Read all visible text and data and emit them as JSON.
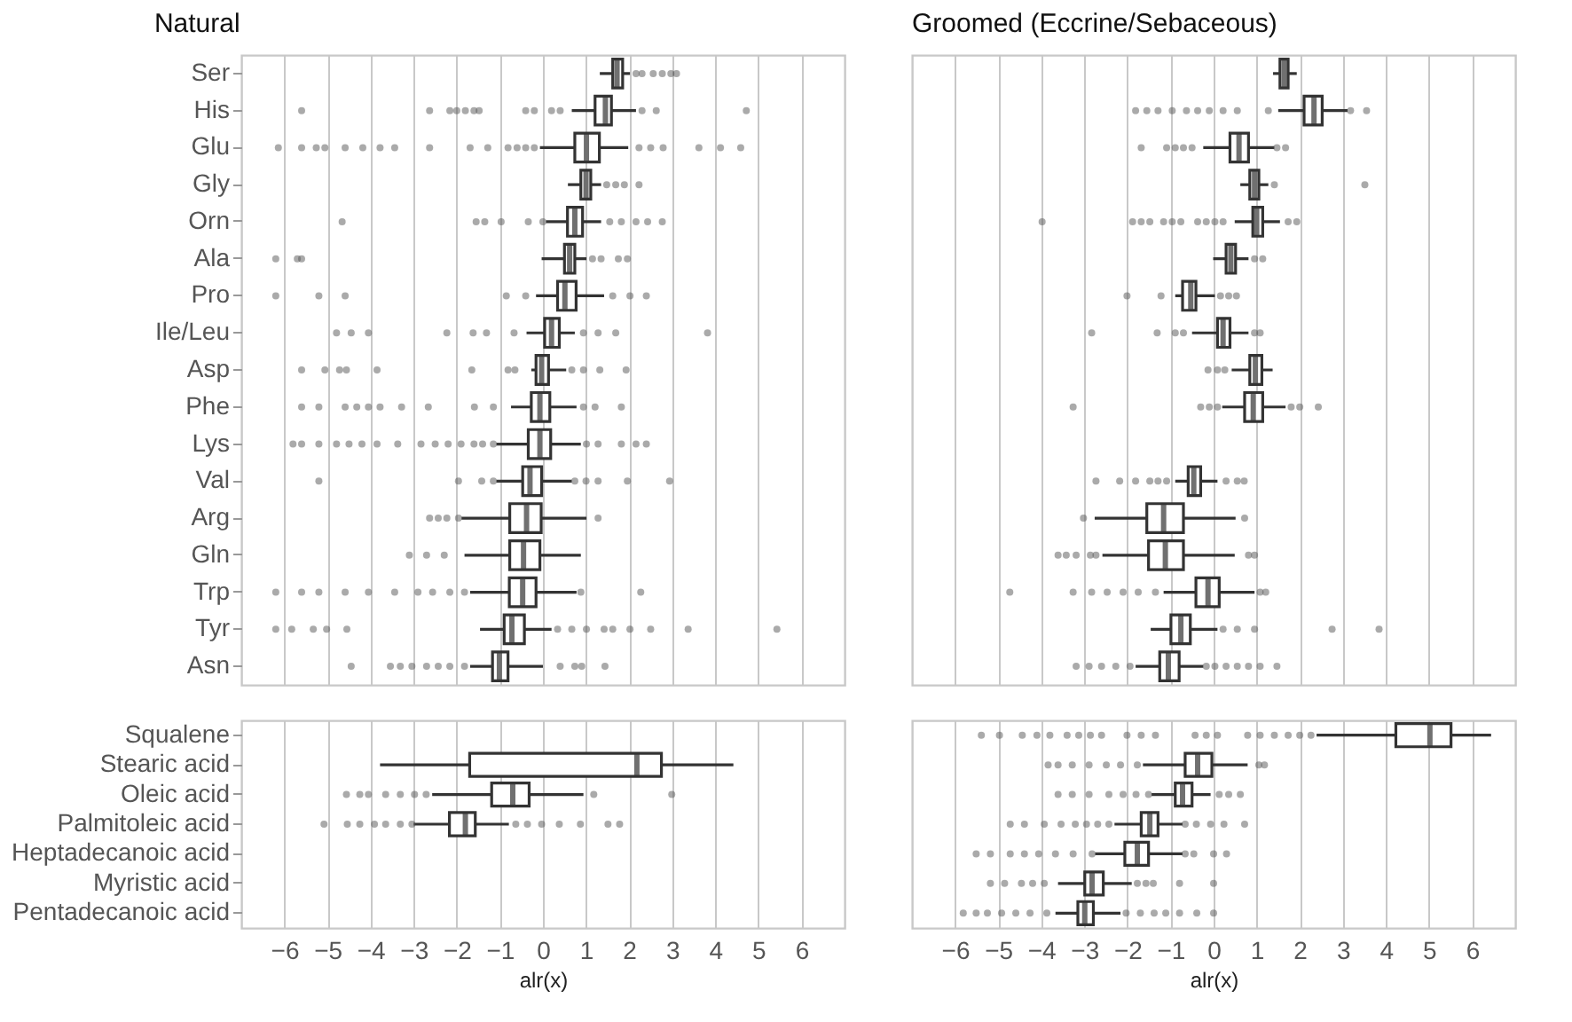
{
  "chart_data": [
    {
      "type": "box",
      "title": "Natural",
      "orientation": "horizontal",
      "grid": "x",
      "tick_labels": "y",
      "xlim": [
        -7,
        7
      ],
      "xticks": [
        -6,
        -5,
        -4,
        -3,
        -2,
        -1,
        0,
        1,
        2,
        3,
        4,
        5,
        6
      ],
      "categories": [
        "Ser",
        "His",
        "Glu",
        "Gly",
        "Orn",
        "Ala",
        "Pro",
        "Ile/Leu",
        "Asp",
        "Phe",
        "Lys",
        "Val",
        "Arg",
        "Gln",
        "Trp",
        "Tyr",
        "Asn"
      ],
      "series": [
        {
          "color": "#333333",
          "boxes": [
            {
              "low": 1.32,
              "q1": 1.62,
              "median": 1.72,
              "q3": 1.85,
              "high": 2.02,
              "outliers": [
                2.16,
                2.3,
                2.56,
                2.77,
                2.97,
                3.1
              ]
            },
            {
              "low": 0.67,
              "q1": 1.21,
              "median": 1.45,
              "q3": 1.59,
              "high": 2.16,
              "outliers": [
                -5.6,
                -2.63,
                -2.16,
                -2.0,
                -1.8,
                -1.6,
                -1.48,
                -0.4,
                -0.2,
                0.2,
                0.4,
                2.3,
                2.63,
                4.72
              ]
            },
            {
              "low": -0.07,
              "q1": 0.74,
              "median": 1.01,
              "q3": 1.31,
              "high": 1.98,
              "outliers": [
                -6.14,
                -5.6,
                -5.26,
                -5.06,
                -4.59,
                -4.18,
                -3.78,
                -3.44,
                -2.63,
                -1.69,
                -1.28,
                -0.81,
                -0.6,
                -0.4,
                -0.2,
                2.23,
                2.5,
                2.79,
                3.62,
                4.12,
                4.59
              ]
            },
            {
              "low": 0.58,
              "q1": 0.88,
              "median": 1.0,
              "q3": 1.11,
              "high": 1.35,
              "outliers": [
                1.48,
                1.69,
                1.89,
                2.23
              ]
            },
            {
              "low": 0.07,
              "q1": 0.57,
              "median": 0.74,
              "q3": 0.92,
              "high": 1.35,
              "outliers": [
                -4.66,
                -1.55,
                -1.35,
                -0.97,
                -0.34,
                0.0,
                1.55,
                1.82,
                2.16,
                2.43,
                2.77
              ]
            },
            {
              "low": -0.03,
              "q1": 0.5,
              "median": 0.62,
              "q3": 0.74,
              "high": 1.01,
              "outliers": [
                -6.2,
                -5.7,
                -5.6,
                1.15,
                1.35,
                1.75,
                1.96
              ]
            },
            {
              "low": -0.16,
              "q1": 0.34,
              "median": 0.51,
              "q3": 0.77,
              "high": 1.42,
              "outliers": [
                -6.2,
                -5.2,
                -4.59,
                -0.85,
                -0.4,
                1.62,
                2.02,
                2.4
              ]
            },
            {
              "low": -0.38,
              "q1": 0.04,
              "median": 0.2,
              "q3": 0.38,
              "high": 0.74,
              "outliers": [
                -4.79,
                -4.45,
                -4.05,
                -2.23,
                -1.62,
                -1.31,
                -0.67,
                0.94,
                1.28,
                1.69,
                3.82
              ]
            },
            {
              "low": -0.27,
              "q1": -0.16,
              "median": -0.03,
              "q3": 0.13,
              "high": 0.54,
              "outliers": [
                -5.6,
                -5.06,
                -4.72,
                -4.56,
                -3.85,
                -1.65,
                -0.81,
                -0.65,
                0.67,
                0.94,
                1.32,
                1.93
              ]
            },
            {
              "low": -0.74,
              "q1": -0.27,
              "median": -0.07,
              "q3": 0.16,
              "high": 0.78,
              "outliers": [
                -5.6,
                -5.2,
                -4.59,
                -4.32,
                -4.05,
                -3.78,
                -3.28,
                -2.66,
                -1.59,
                -1.15,
                0.94,
                1.21,
                1.82
              ]
            },
            {
              "low": -1.08,
              "q1": -0.34,
              "median": -0.07,
              "q3": 0.18,
              "high": 0.88,
              "outliers": [
                -5.8,
                -5.6,
                -5.2,
                -4.79,
                -4.5,
                -4.2,
                -3.85,
                -3.37,
                -2.83,
                -2.5,
                -2.2,
                -1.9,
                -1.6,
                -1.4,
                -1.15,
                1.01,
                1.28,
                1.82,
                2.16,
                2.4
              ]
            },
            {
              "low": -1.08,
              "q1": -0.47,
              "median": -0.3,
              "q3": -0.03,
              "high": 0.67,
              "outliers": [
                -5.2,
                -1.96,
                -1.42,
                -1.15,
                0.74,
                1.0,
                1.28,
                1.96,
                2.94
              ]
            },
            {
              "low": -1.89,
              "q1": -0.77,
              "median": -0.38,
              "q3": -0.04,
              "high": 1.01,
              "outliers": [
                -2.63,
                -2.43,
                -2.23,
                -1.96,
                1.28
              ]
            },
            {
              "low": -1.82,
              "q1": -0.77,
              "median": -0.45,
              "q3": -0.07,
              "high": 0.88,
              "outliers": [
                -3.1,
                -2.7,
                -2.29
              ]
            },
            {
              "low": -1.69,
              "q1": -0.78,
              "median": -0.47,
              "q3": -0.16,
              "high": 0.78,
              "outliers": [
                -6.2,
                -5.6,
                -5.2,
                -4.59,
                -4.05,
                -3.44,
                -2.9,
                -2.56,
                -2.16,
                -1.82,
                0.88,
                2.27
              ]
            },
            {
              "low": -1.46,
              "q1": -0.9,
              "median": -0.72,
              "q3": -0.43,
              "high": 0.2,
              "outliers": [
                -6.2,
                -5.83,
                -5.33,
                -5.02,
                -4.55,
                0.34,
                0.67,
                1.01,
                1.42,
                1.62,
                2.02,
                2.5,
                3.37,
                5.43
              ]
            },
            {
              "low": -1.69,
              "q1": -1.17,
              "median": -1.01,
              "q3": -0.81,
              "high": 0.0,
              "outliers": [
                -4.45,
                -3.54,
                -3.31,
                -3.04,
                -2.7,
                -2.43,
                -2.16,
                -1.82,
                0.4,
                0.74,
                0.9,
                1.44
              ]
            }
          ]
        }
      ]
    },
    {
      "type": "box",
      "title": "Groomed (Eccrine/Sebaceous)",
      "orientation": "horizontal",
      "grid": "x",
      "tick_labels": false,
      "xlim": [
        -7,
        7
      ],
      "xticks": [
        -6,
        -5,
        -4,
        -3,
        -2,
        -1,
        0,
        1,
        2,
        3,
        4,
        5,
        6
      ],
      "categories": [
        null,
        null,
        null,
        null,
        null,
        null,
        null,
        null,
        null,
        null,
        null,
        null,
        null,
        null,
        null,
        null,
        null
      ],
      "series": [
        {
          "color": "#333333",
          "boxes": [
            {
              "low": 1.38,
              "q1": 1.54,
              "median": 1.64,
              "q3": 1.73,
              "high": 1.93
            },
            {
              "low": 1.5,
              "q1": 2.1,
              "median": 2.33,
              "q3": 2.52,
              "high": 3.11,
              "outliers": [
                -1.81,
                -1.55,
                -1.29,
                -0.96,
                -0.63,
                -0.37,
                -0.1,
                0.22,
                0.55,
                1.27,
                3.18,
                3.55
              ]
            },
            {
              "low": -0.24,
              "q1": 0.38,
              "median": 0.59,
              "q3": 0.81,
              "high": 1.41,
              "outliers": [
                -1.68,
                -1.09,
                -0.89,
                -0.7,
                -0.5,
                1.47,
                1.67
              ]
            },
            {
              "low": 0.62,
              "q1": 0.84,
              "median": 0.95,
              "q3": 1.05,
              "high": 1.27,
              "outliers": [
                1.41,
                3.51
              ]
            },
            {
              "low": 0.49,
              "q1": 0.91,
              "median": 1.0,
              "q3": 1.14,
              "high": 1.54,
              "outliers": [
                -3.98,
                -1.88,
                -1.68,
                -1.48,
                -1.16,
                -0.96,
                -0.76,
                -0.37,
                -0.17,
                0.03,
                0.22,
                1.73,
                1.93
              ]
            },
            {
              "low": -0.01,
              "q1": 0.29,
              "median": 0.4,
              "q3": 0.51,
              "high": 0.81,
              "outliers": [
                0.95,
                1.14
              ]
            },
            {
              "low": -0.89,
              "q1": -0.72,
              "median": -0.53,
              "q3": -0.41,
              "high": 0.03,
              "outliers": [
                -2.01,
                -1.22,
                0.16,
                0.35,
                0.53
              ]
            },
            {
              "low": -0.5,
              "q1": 0.09,
              "median": 0.22,
              "q3": 0.38,
              "high": 0.81,
              "outliers": [
                -2.83,
                -1.31,
                -0.89,
                -0.7,
                0.95,
                1.08
              ]
            },
            {
              "low": 0.42,
              "q1": 0.84,
              "median": 0.97,
              "q3": 1.12,
              "high": 1.37,
              "outliers": [
                -0.13,
                0.09,
                0.26
              ]
            },
            {
              "low": 0.2,
              "q1": 0.72,
              "median": 0.92,
              "q3": 1.14,
              "high": 1.67,
              "outliers": [
                -3.26,
                -0.3,
                -0.1,
                0.09,
                1.8,
                2.0,
                2.43
              ]
            },
            null,
            {
              "low": -0.89,
              "q1": -0.59,
              "median": -0.46,
              "q3": -0.3,
              "high": 0.09,
              "outliers": [
                -2.73,
                -2.18,
                -1.81,
                -1.48,
                -1.29,
                -1.09,
                0.29,
                0.55,
                0.71
              ]
            },
            {
              "low": -2.76,
              "q1": -1.55,
              "median": -1.16,
              "q3": -0.7,
              "high": 0.51,
              "outliers": [
                -3.02,
                0.72
              ]
            },
            {
              "low": -2.58,
              "q1": -1.51,
              "median": -1.12,
              "q3": -0.7,
              "high": 0.49,
              "outliers": [
                -3.61,
                -3.42,
                -3.19,
                -2.86,
                -2.73,
                0.81,
                0.95
              ]
            },
            {
              "low": -1.16,
              "q1": -0.41,
              "median": -0.13,
              "q3": 0.13,
              "high": 0.95,
              "outliers": [
                -4.73,
                -3.26,
                -2.83,
                -2.47,
                -2.1,
                -1.75,
                -1.35,
                1.08,
                1.21
              ]
            },
            {
              "low": -1.46,
              "q1": -0.99,
              "median": -0.76,
              "q3": -0.54,
              "high": 0.09,
              "outliers": [
                0.22,
                0.55,
                0.95,
                2.75,
                3.84
              ]
            },
            {
              "low": -1.81,
              "q1": -1.25,
              "median": -1.05,
              "q3": -0.8,
              "high": -0.24,
              "outliers": [
                -3.19,
                -2.89,
                -2.6,
                -2.27,
                -1.94,
                -0.17,
                0.03,
                0.29,
                0.55,
                0.81,
                1.08,
                1.47
              ]
            }
          ]
        }
      ]
    },
    {
      "type": "box",
      "xlabel": "alr(x)",
      "orientation": "horizontal",
      "grid": "x",
      "xlim": [
        -7,
        7
      ],
      "xticks": [
        {
          "value": -6,
          "label": "−6"
        },
        {
          "value": -5,
          "label": "−5"
        },
        {
          "value": -4,
          "label": "−4"
        },
        {
          "value": -3,
          "label": "−3"
        },
        {
          "value": -2,
          "label": "−2"
        },
        {
          "value": -1,
          "label": "−1"
        },
        0,
        1,
        2,
        3,
        4,
        5,
        6
      ],
      "categories": [
        "Squalene",
        "Stearic acid",
        "Oleic acid",
        "Palmitoleic acid",
        "Heptadecanoic acid",
        "Myristic acid",
        "Pentadecanoic acid"
      ],
      "series": [
        {
          "color": "#333333",
          "boxes": [
            null,
            {
              "low": -3.78,
              "q1": -1.7,
              "median": 2.18,
              "q3": 2.75,
              "high": 4.42
            },
            {
              "low": -2.57,
              "q1": -1.19,
              "median": -0.7,
              "q3": -0.32,
              "high": 0.94,
              "outliers": [
                -4.56,
                -4.25,
                -4.05,
                -3.65,
                -3.31,
                -2.98,
                -2.71,
                1.18,
                2.99
              ]
            },
            {
              "low": -3.0,
              "q1": -2.17,
              "median": -1.8,
              "q3": -1.57,
              "high": -0.79,
              "outliers": [
                -5.08,
                -4.54,
                -4.25,
                -3.91,
                -3.65,
                -3.31,
                -3.04,
                -0.63,
                -0.36,
                -0.03,
                0.38,
                0.87,
                1.51,
                1.78
              ]
            },
            null,
            null,
            null
          ]
        }
      ]
    },
    {
      "type": "box",
      "xlabel": "alr(x)",
      "orientation": "horizontal",
      "grid": "x",
      "tick_labels": "x",
      "xlim": [
        -7,
        7
      ],
      "xticks": [
        {
          "value": -6,
          "label": "−6"
        },
        {
          "value": -5,
          "label": "−5"
        },
        {
          "value": -4,
          "label": "−4"
        },
        {
          "value": -3,
          "label": "−3"
        },
        {
          "value": -2,
          "label": "−2"
        },
        {
          "value": -1,
          "label": "−1"
        },
        0,
        1,
        2,
        3,
        4,
        5,
        6
      ],
      "categories": [
        null,
        null,
        null,
        null,
        null,
        null,
        null
      ],
      "series": [
        {
          "color": "#333333",
          "boxes": [
            {
              "low": 2.39,
              "q1": 4.23,
              "median": 5.02,
              "q3": 5.51,
              "high": 6.44,
              "outliers": [
                -5.39,
                -4.97,
                -4.44,
                -4.1,
                -3.8,
                -3.4,
                -3.13,
                -2.86,
                -2.6,
                -2.01,
                -1.68,
                -1.35,
                -0.43,
                -0.17,
                0.09,
                0.79,
                1.08,
                1.41,
                1.73,
                2.0,
                2.26
              ]
            },
            {
              "low": -1.64,
              "q1": -0.66,
              "median": -0.37,
              "q3": -0.04,
              "high": 0.79,
              "outliers": [
                -3.84,
                -3.61,
                -3.28,
                -2.89,
                -2.49,
                -2.16,
                -1.77,
                1.05,
                1.18
              ]
            },
            {
              "low": -1.44,
              "q1": -0.89,
              "median": -0.72,
              "q3": -0.5,
              "high": -0.07,
              "outliers": [
                -3.61,
                -3.28,
                -2.89,
                -2.43,
                -2.1,
                -1.8,
                -1.51,
                0.13,
                0.35,
                0.62
              ]
            },
            {
              "low": -2.3,
              "q1": -1.68,
              "median": -1.48,
              "q3": -1.29,
              "high": -0.72,
              "outliers": [
                -4.72,
                -4.39,
                -3.93,
                -3.54,
                -3.21,
                -2.95,
                -2.69,
                -2.43,
                -0.66,
                -0.4,
                -0.07,
                0.24,
                0.72
              ]
            },
            {
              "low": -2.75,
              "q1": -2.06,
              "median": -1.77,
              "q3": -1.51,
              "high": -0.72,
              "outliers": [
                -5.51,
                -5.18,
                -4.72,
                -4.39,
                -4.06,
                -3.67,
                -3.26,
                -2.82,
                -0.66,
                -0.46,
                0.0,
                0.3
              ]
            },
            {
              "low": -3.61,
              "q1": -2.99,
              "median": -2.82,
              "q3": -2.56,
              "high": -1.9,
              "outliers": [
                -5.18,
                -4.85,
                -4.46,
                -4.2,
                -3.93,
                -1.77,
                -1.57,
                -1.4,
                -0.79,
                0.0
              ]
            },
            {
              "low": -3.67,
              "q1": -3.15,
              "median": -2.99,
              "q3": -2.79,
              "high": -2.16,
              "outliers": [
                -5.81,
                -5.51,
                -5.25,
                -4.92,
                -4.59,
                -4.26,
                -3.87,
                -2.03,
                -1.7,
                -1.38,
                -1.11,
                -0.79,
                -0.39,
                0.0
              ]
            }
          ]
        }
      ]
    }
  ]
}
